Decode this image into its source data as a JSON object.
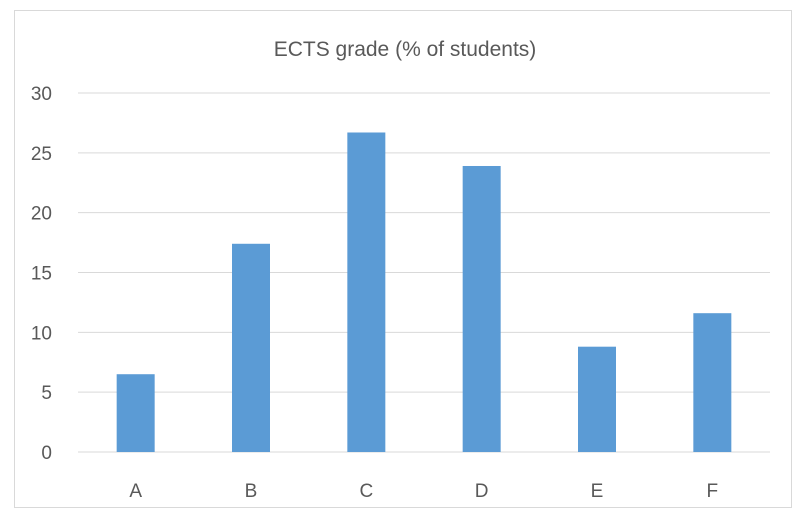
{
  "chart_data": {
    "type": "bar",
    "title": "ECTS grade (% of students)",
    "xlabel": "",
    "ylabel": "",
    "categories": [
      "A",
      "B",
      "C",
      "D",
      "E",
      "F"
    ],
    "values": [
      6.5,
      17.4,
      26.7,
      23.9,
      8.8,
      11.6
    ],
    "ylim": [
      0,
      30
    ],
    "yticks": [
      0,
      5,
      10,
      15,
      20,
      25,
      30
    ],
    "grid": true,
    "legend": "none",
    "colors": {
      "bar": "#5b9bd5",
      "grid": "#d9d9d9",
      "axis": "#d9d9d9",
      "text": "#595959"
    }
  }
}
